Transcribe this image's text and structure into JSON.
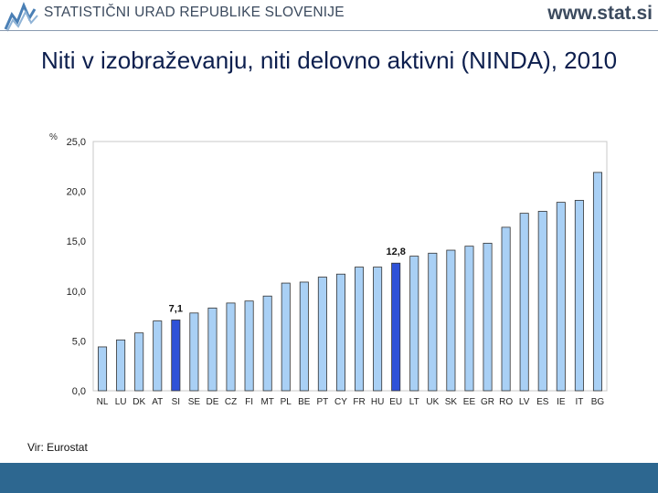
{
  "header": {
    "organization": "STATISTIČNI URAD REPUBLIKE SLOVENIJE",
    "website": "www.stat.si"
  },
  "title": "Niti v izobraževanju, niti delovno aktivni (NINDA), 2010",
  "source": "Vir: Eurostat",
  "colors": {
    "bar": "#a9d0f5",
    "bar_highlight": "#2f52d8",
    "bar_border": "#333333",
    "footer": "#2d6790",
    "title": "#0d1f4e"
  },
  "chart_data": {
    "type": "bar",
    "ylabel": "%",
    "ylim": [
      0,
      25
    ],
    "yticks": [
      "0,0",
      "5,0",
      "10,0",
      "15,0",
      "20,0",
      "25,0"
    ],
    "grid": false,
    "categories": [
      "NL",
      "LU",
      "DK",
      "AT",
      "SI",
      "SE",
      "DE",
      "CZ",
      "FI",
      "MT",
      "PL",
      "BE",
      "PT",
      "CY",
      "FR",
      "HU",
      "EU",
      "LT",
      "UK",
      "SK",
      "EE",
      "GR",
      "RO",
      "LV",
      "ES",
      "IE",
      "IT",
      "BG"
    ],
    "values": [
      4.4,
      5.1,
      5.8,
      7.0,
      7.1,
      7.8,
      8.3,
      8.8,
      9.0,
      9.5,
      10.8,
      10.9,
      11.4,
      11.7,
      12.4,
      12.4,
      12.8,
      13.5,
      13.8,
      14.1,
      14.5,
      14.8,
      16.4,
      17.8,
      18.0,
      18.9,
      19.1,
      21.9
    ],
    "highlighted": [
      "SI",
      "EU"
    ],
    "data_labels": [
      {
        "category": "SI",
        "text": "7,1"
      },
      {
        "category": "EU",
        "text": "12,8"
      }
    ]
  }
}
